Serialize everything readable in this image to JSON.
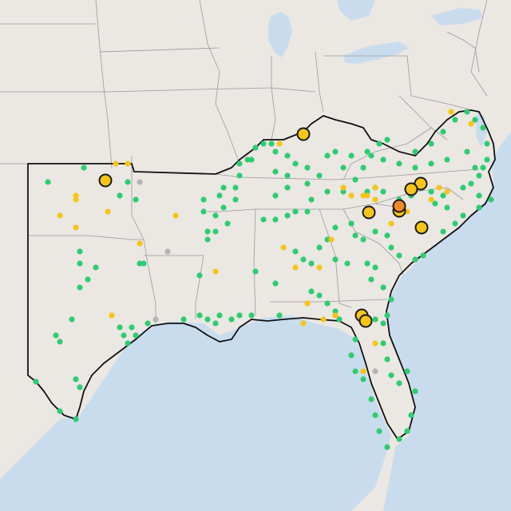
{
  "map": {
    "colors": {
      "land": "#ebe7e3",
      "water": "#c9dcee",
      "state_border": "#9a9a9a",
      "region_outline": "#111111",
      "good": "#2ecc71",
      "moderate": "#f5c518",
      "unhealthy_sensitive": "#f08a24",
      "no_data": "#b5b5b5"
    },
    "marker_categories": [
      "good",
      "moderate",
      "unhealthy_sensitive",
      "no_data"
    ]
  }
}
